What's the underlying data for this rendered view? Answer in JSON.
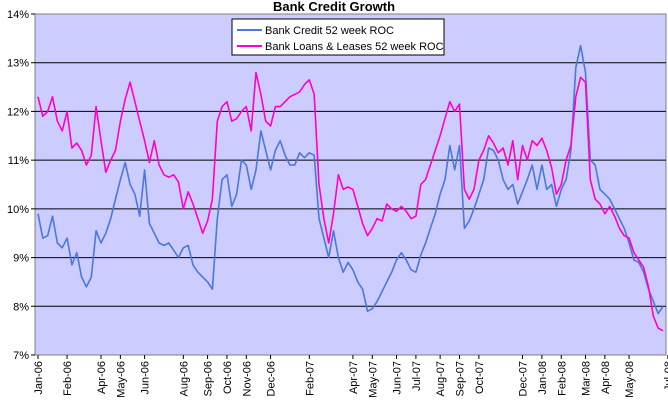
{
  "chart_data": {
    "type": "line",
    "title": "Bank Credit Growth",
    "xlabel": "",
    "ylabel": "",
    "ylim": [
      7,
      14
    ],
    "y_tick_labels": [
      "7%",
      "8%",
      "9%",
      "10%",
      "11%",
      "12%",
      "13%",
      "14%"
    ],
    "x_tick_labels": [
      "Jan-06",
      "Feb-06",
      "Apr-06",
      "May-06",
      "Jun-06",
      "Aug-06",
      "Sep-06",
      "Oct-06",
      "Nov-06",
      "Dec-06",
      "Feb-07",
      "Apr-07",
      "May-07",
      "Jun-07",
      "Jul-07",
      "Aug-07",
      "Sep-07",
      "Oct-07",
      "Dec-07",
      "Jan-08",
      "Feb-08",
      "Mar-08",
      "Apr-08",
      "May-08",
      "Jul-08"
    ],
    "x_tick_weeks": [
      0,
      6,
      13,
      17,
      22,
      30,
      35,
      39,
      43,
      48,
      56,
      65,
      69,
      74,
      78,
      83,
      87,
      91,
      100,
      104,
      108,
      113,
      117,
      122,
      130
    ],
    "grid": "horizontal",
    "legend_position": "top-center",
    "plot_background": "#ccccff",
    "series": [
      {
        "name": "Bank Credit 52 week ROC",
        "color": "#4a78e0",
        "values": [
          9.9,
          9.4,
          9.45,
          9.85,
          9.3,
          9.2,
          9.4,
          8.85,
          9.1,
          8.6,
          8.4,
          8.6,
          9.55,
          9.3,
          9.5,
          9.8,
          10.2,
          10.6,
          10.95,
          10.5,
          10.3,
          9.85,
          10.8,
          9.7,
          9.5,
          9.3,
          9.25,
          9.3,
          9.15,
          9.0,
          9.2,
          9.25,
          8.85,
          8.7,
          8.6,
          8.5,
          8.35,
          9.8,
          10.6,
          10.7,
          10.05,
          10.3,
          11.0,
          10.9,
          10.4,
          10.8,
          11.6,
          11.2,
          10.8,
          11.2,
          11.4,
          11.1,
          10.9,
          10.9,
          11.15,
          11.05,
          11.15,
          11.1,
          9.8,
          9.4,
          9.0,
          9.55,
          9.0,
          8.7,
          8.9,
          8.75,
          8.5,
          8.35,
          7.9,
          7.95,
          8.1,
          8.3,
          8.5,
          8.7,
          8.95,
          9.1,
          8.95,
          8.75,
          8.7,
          9.05,
          9.3,
          9.6,
          9.9,
          10.3,
          10.6,
          11.3,
          10.8,
          11.3,
          9.6,
          9.75,
          10.0,
          10.3,
          10.6,
          11.25,
          11.2,
          11.0,
          10.6,
          10.4,
          10.5,
          10.1,
          10.35,
          10.6,
          10.9,
          10.4,
          10.9,
          10.4,
          10.5,
          10.05,
          10.4,
          10.6,
          11.2,
          12.9,
          13.35,
          12.8,
          11.0,
          10.9,
          10.4,
          10.3,
          10.2,
          10.0,
          9.8,
          9.6,
          9.3,
          8.95,
          8.9,
          8.7,
          8.35,
          8.1,
          7.85,
          8.0
        ]
      },
      {
        "name": "Bank Loans & Leases 52 week ROC",
        "color": "#ff00cc",
        "values": [
          12.3,
          11.9,
          12.0,
          12.3,
          11.8,
          11.6,
          12.0,
          11.25,
          11.35,
          11.2,
          10.9,
          11.1,
          12.1,
          11.4,
          10.75,
          11.0,
          11.2,
          11.8,
          12.25,
          12.6,
          12.2,
          11.8,
          11.4,
          10.95,
          11.4,
          10.9,
          10.7,
          10.65,
          10.7,
          10.55,
          10.0,
          10.35,
          10.1,
          9.8,
          9.5,
          9.75,
          10.2,
          11.8,
          12.1,
          12.2,
          11.8,
          11.85,
          12.0,
          12.1,
          11.6,
          12.8,
          12.35,
          11.8,
          11.7,
          12.1,
          12.1,
          12.2,
          12.3,
          12.35,
          12.4,
          12.55,
          12.65,
          12.35,
          10.5,
          9.8,
          9.3,
          9.9,
          10.7,
          10.4,
          10.45,
          10.4,
          10.05,
          9.7,
          9.45,
          9.6,
          9.8,
          9.75,
          10.1,
          10.0,
          9.95,
          10.05,
          9.95,
          9.8,
          9.85,
          10.5,
          10.6,
          10.9,
          11.2,
          11.5,
          11.85,
          12.2,
          12.0,
          12.15,
          10.4,
          10.2,
          10.4,
          11.0,
          11.2,
          11.5,
          11.35,
          11.15,
          11.25,
          10.9,
          11.4,
          10.6,
          11.3,
          11.0,
          11.4,
          11.3,
          11.45,
          11.2,
          10.85,
          10.3,
          10.5,
          11.0,
          11.3,
          12.3,
          12.7,
          12.6,
          10.6,
          10.2,
          10.1,
          9.9,
          10.05,
          9.85,
          9.6,
          9.45,
          9.4,
          9.1,
          8.95,
          8.8,
          8.4,
          7.8,
          7.55,
          7.5
        ]
      }
    ]
  }
}
